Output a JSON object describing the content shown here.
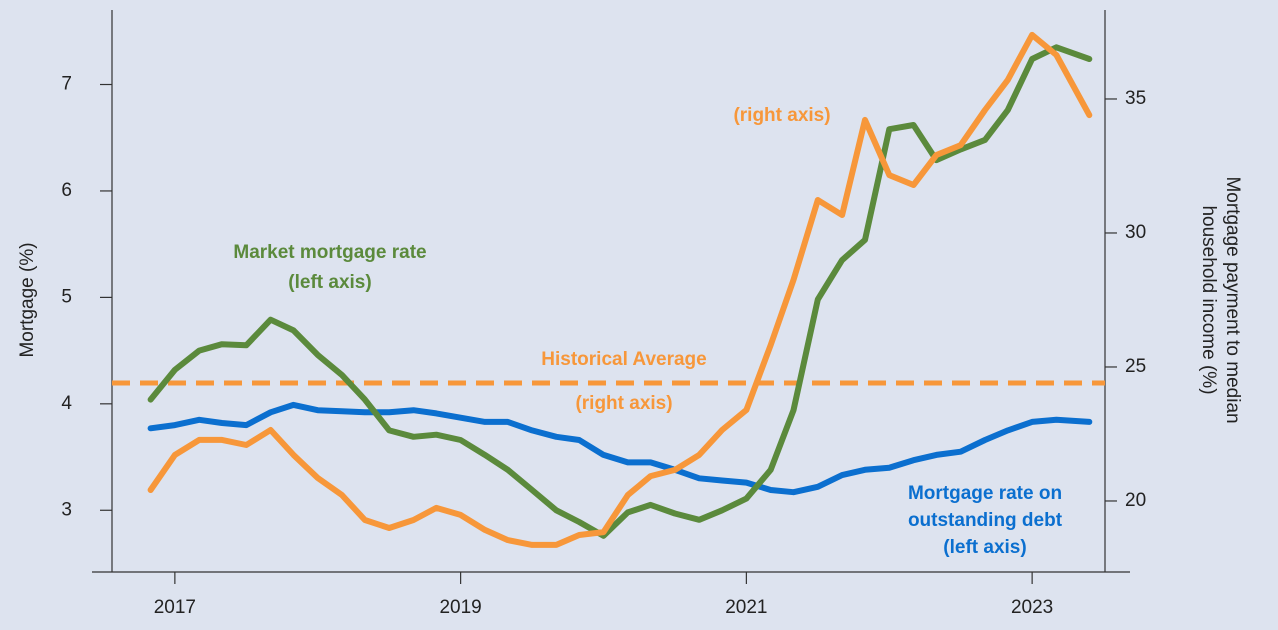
{
  "chart_data": {
    "type": "line",
    "ylabel": "Mortgage (%)",
    "y2label": [
      "Mortgage payment to median",
      "household income (%)"
    ],
    "x": [
      2016.83,
      2017.0,
      2017.17,
      2017.33,
      2017.5,
      2017.67,
      2017.83,
      2018.0,
      2018.17,
      2018.33,
      2018.5,
      2018.67,
      2018.83,
      2019.0,
      2019.17,
      2019.33,
      2019.5,
      2019.67,
      2019.83,
      2020.0,
      2020.17,
      2020.33,
      2020.5,
      2020.67,
      2020.83,
      2021.0,
      2021.17,
      2021.33,
      2021.5,
      2021.67,
      2021.83,
      2022.0,
      2022.17,
      2022.33,
      2022.5,
      2022.67,
      2022.83,
      2023.0,
      2023.17,
      2023.4
    ],
    "series": [
      {
        "name": "Mortgage rate on outstanding debt",
        "color": "#0b6fcf",
        "values": [
          3.77,
          3.8,
          3.85,
          3.82,
          3.8,
          3.92,
          3.99,
          3.94,
          3.93,
          3.92,
          3.92,
          3.94,
          3.91,
          3.87,
          3.83,
          3.83,
          3.75,
          3.69,
          3.66,
          3.52,
          3.45,
          3.45,
          3.38,
          3.3,
          3.28,
          3.26,
          3.19,
          3.17,
          3.22,
          3.33,
          3.38,
          3.4,
          3.47,
          3.52,
          3.55,
          3.66,
          3.75,
          3.83,
          3.85,
          3.83
        ]
      },
      {
        "name": "Market mortgage rate",
        "color": "#5b8a3c",
        "values": [
          4.04,
          4.32,
          4.5,
          4.56,
          4.55,
          4.79,
          4.69,
          4.46,
          4.27,
          4.04,
          3.75,
          3.69,
          3.71,
          3.66,
          3.52,
          3.38,
          3.19,
          3.0,
          2.89,
          2.76,
          2.98,
          3.05,
          2.97,
          2.91,
          3.0,
          3.11,
          3.38,
          3.94,
          4.98,
          5.35,
          5.54,
          6.58,
          6.62,
          6.29,
          6.39,
          6.48,
          6.76,
          7.24,
          7.35,
          7.24
        ]
      },
      {
        "name": "Mortgage payment to median household income",
        "color": "#f7973a",
        "axis": "y2",
        "values": [
          20.41,
          21.72,
          22.28,
          22.28,
          22.09,
          22.65,
          21.72,
          20.86,
          20.22,
          19.29,
          18.99,
          19.29,
          19.74,
          19.48,
          18.92,
          18.54,
          18.36,
          18.36,
          18.73,
          18.84,
          20.22,
          20.93,
          21.16,
          21.72,
          22.65,
          23.4,
          25.82,
          28.25,
          31.23,
          30.67,
          34.22,
          32.16,
          31.79,
          32.91,
          33.28,
          34.59,
          35.71,
          37.39,
          36.64,
          34.4
        ]
      }
    ],
    "hline": {
      "value": 24.4,
      "axis": "y2",
      "color": "#f7973a"
    },
    "annotations": [
      {
        "text": [
          "Market mortgage rate",
          "(left axis)"
        ],
        "color": "#5b8a3c"
      },
      {
        "text": [
          "Historical Average",
          "(right axis)"
        ],
        "color": "#f7973a"
      },
      {
        "text": [
          "(right axis)"
        ],
        "color": "#f7973a"
      },
      {
        "text": [
          "Mortgage rate on",
          "outstanding debt",
          "(left axis)"
        ],
        "color": "#0b6fcf"
      }
    ],
    "xlim": [
      2016.56,
      2023.51
    ],
    "xticks": [
      2017,
      2019,
      2021,
      2023
    ],
    "ylim": [
      2.42,
      7.7
    ],
    "yticks": [
      3,
      4,
      5,
      6,
      7
    ],
    "y2lim": [
      17.35,
      38.32
    ],
    "y2ticks": [
      20,
      25,
      30,
      35
    ]
  }
}
